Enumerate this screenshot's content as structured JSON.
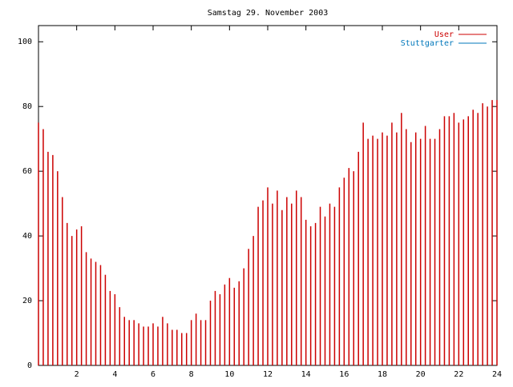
{
  "chart_data": {
    "type": "impulse",
    "title": "Samstag 29. November 2003",
    "x": [
      0,
      0.25,
      0.5,
      0.75,
      1,
      1.25,
      1.5,
      1.75,
      2,
      2.25,
      2.5,
      2.75,
      3,
      3.25,
      3.5,
      3.75,
      4,
      4.25,
      4.5,
      4.75,
      5,
      5.25,
      5.5,
      5.75,
      6,
      6.25,
      6.5,
      6.75,
      7,
      7.25,
      7.5,
      7.75,
      8,
      8.25,
      8.5,
      8.75,
      9,
      9.25,
      9.5,
      9.75,
      10,
      10.25,
      10.5,
      10.75,
      11,
      11.25,
      11.5,
      11.75,
      12,
      12.25,
      12.5,
      12.75,
      13,
      13.25,
      13.5,
      13.75,
      14,
      14.25,
      14.5,
      14.75,
      15,
      15.25,
      15.5,
      15.75,
      16,
      16.25,
      16.5,
      16.75,
      17,
      17.25,
      17.5,
      17.75,
      18,
      18.25,
      18.5,
      18.75,
      19,
      19.25,
      19.5,
      19.75,
      20,
      20.25,
      20.5,
      20.75,
      21,
      21.25,
      21.5,
      21.75,
      22,
      22.25,
      22.5,
      22.75,
      23,
      23.25,
      23.5,
      23.75,
      24
    ],
    "series": [
      {
        "name": "User",
        "color": "#cc0000",
        "values": [
          75,
          73,
          66,
          65,
          60,
          52,
          44,
          40,
          42,
          43,
          35,
          33,
          32,
          31,
          28,
          23,
          22,
          18,
          15,
          14,
          14,
          13,
          12,
          12,
          13,
          12,
          15,
          13,
          11,
          11,
          10,
          10,
          14,
          16,
          14,
          14,
          20,
          23,
          22,
          25,
          27,
          24,
          26,
          30,
          36,
          40,
          49,
          51,
          55,
          50,
          54,
          48,
          52,
          50,
          54,
          52,
          45,
          43,
          44,
          49,
          46,
          50,
          49,
          55,
          58,
          61,
          60,
          66,
          75,
          70,
          71,
          70,
          72,
          71,
          75,
          72,
          78,
          73,
          69,
          72,
          70,
          74,
          70,
          70,
          73,
          77,
          77,
          78,
          75,
          76,
          77,
          79,
          78,
          81,
          80,
          82,
          82
        ]
      },
      {
        "name": "Stuttgarter",
        "color": "#0077bb",
        "values": [
          null,
          null,
          null,
          null,
          null,
          null,
          null,
          null,
          null,
          null,
          null,
          null,
          null,
          null,
          null,
          null,
          null,
          null,
          null,
          null,
          null,
          null,
          null,
          null,
          null,
          null,
          null,
          null,
          null,
          null,
          null,
          null,
          null,
          null,
          null,
          null,
          null,
          null,
          null,
          null,
          null,
          null,
          null,
          null,
          null,
          null,
          null,
          null,
          null,
          null,
          null,
          null,
          null,
          null,
          null,
          null,
          null,
          null,
          null,
          null,
          null,
          null,
          null,
          null,
          null,
          null,
          null,
          null,
          null,
          null,
          null,
          null,
          null,
          null,
          null,
          null,
          null,
          null,
          null,
          null,
          null,
          null,
          null,
          null,
          null,
          null,
          null,
          null,
          null,
          null,
          null,
          null,
          null,
          null,
          null,
          null,
          null
        ]
      }
    ],
    "xlim": [
      0,
      24
    ],
    "xticks": [
      2,
      4,
      6,
      8,
      10,
      12,
      14,
      16,
      18,
      20,
      22,
      24
    ],
    "ylim": [
      0,
      105
    ],
    "yticks": [
      0,
      20,
      40,
      60,
      80,
      100
    ]
  }
}
